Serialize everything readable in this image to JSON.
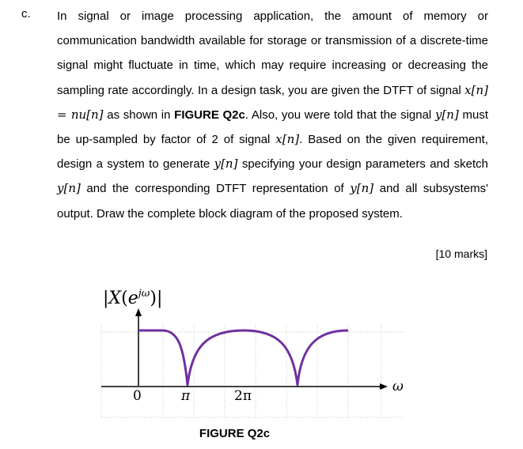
{
  "question": {
    "label": "c.",
    "segments": [
      {
        "t": "text",
        "v": "In signal or image processing application, the amount of memory or communication bandwidth available for storage or transmission of a discrete-time signal might fluctuate in time, which may require increasing or decreasing the sampling rate accordingly. In a design task, you are given the DTFT of signal "
      },
      {
        "t": "math",
        "v": "x[n] = nu[n]"
      },
      {
        "t": "text",
        "v": " as shown in "
      },
      {
        "t": "bold",
        "v": "FIGURE Q2c"
      },
      {
        "t": "text",
        "v": ". Also, you were told that the signal "
      },
      {
        "t": "math",
        "v": "y[n]"
      },
      {
        "t": "text",
        "v": " must be up-sampled by factor of 2 of signal "
      },
      {
        "t": "math",
        "v": "x[n]"
      },
      {
        "t": "text",
        "v": ". Based on the given requirement, design a system to generate "
      },
      {
        "t": "math",
        "v": "y[n]"
      },
      {
        "t": "text",
        "v": " specifying your design parameters and sketch "
      },
      {
        "t": "math",
        "v": "y[n]"
      },
      {
        "t": "text",
        "v": " and the corresponding DTFT representation of "
      },
      {
        "t": "math",
        "v": "y[n]"
      },
      {
        "t": "text",
        "v": " and all subsystems' output.  Draw the complete block diagram of the proposed system."
      }
    ],
    "marks": "[10 marks]"
  },
  "figure": {
    "caption": "FIGURE Q2c",
    "y_axis_label": "|X(e^jω)|",
    "x_axis_label": "ω",
    "tick_labels": [
      "0",
      "π",
      "2π"
    ],
    "curve_color": "#7030a0",
    "axis_color": "#000000",
    "grid_color": "#c8c8c8"
  }
}
